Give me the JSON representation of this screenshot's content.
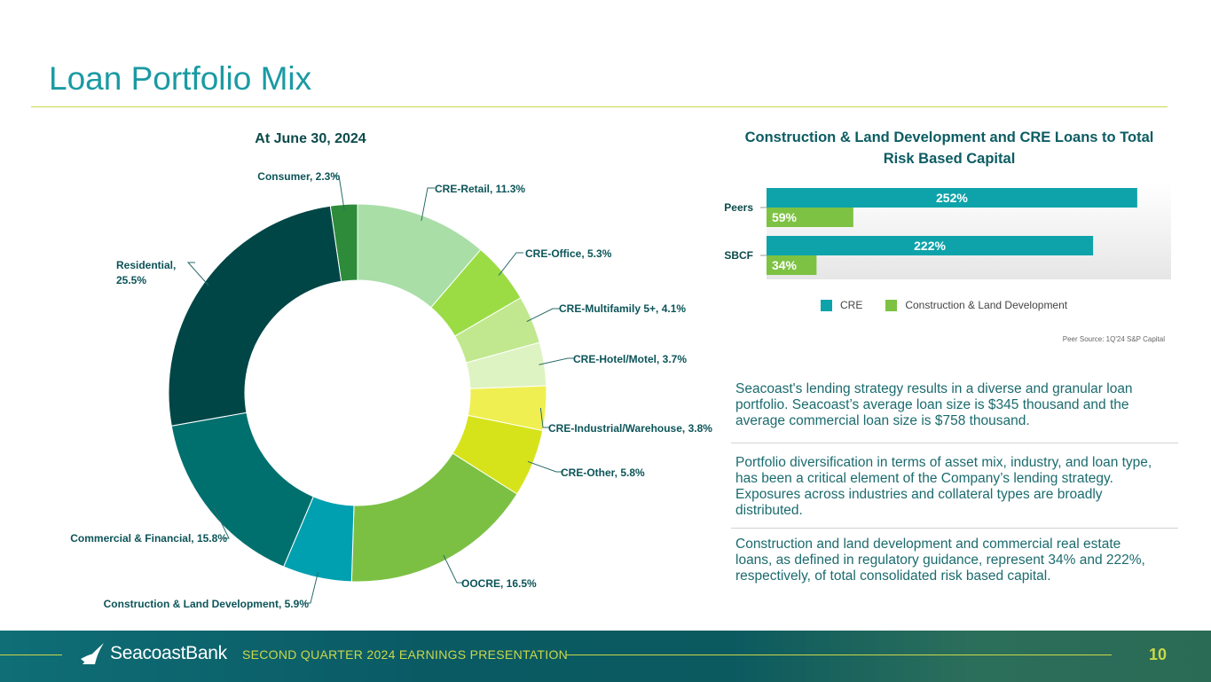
{
  "page": {
    "title": "Loan Portfolio Mix",
    "footer": {
      "brand": "SeacoastBank",
      "presentation": "SECOND QUARTER 2024 EARNINGS PRESENTATION",
      "page_number": "10"
    },
    "source_note": "Peer Source: 1Q'24 S&P Capital",
    "paragraphs": [
      "Seacoast's lending strategy results in a diverse and granular loan portfolio. Seacoast’s average loan size is $345 thousand and the average commercial loan size is $758 thousand.",
      "Portfolio diversification in terms of asset mix, industry, and loan type, has been a critical element of the Company’s lending strategy. Exposures across industries and collateral types are broadly distributed.",
      "Construction and land development and commercial real estate loans, as defined in regulatory guidance, represent 34% and 222%, respectively, of total consolidated risk based capital."
    ]
  },
  "chart_data": [
    {
      "type": "pie",
      "title": "At June 30, 2024",
      "categories": [
        "CRE-Retail",
        "CRE-Office",
        "CRE-Multifamily 5+",
        "CRE-Hotel/Motel",
        "CRE-Industrial/Warehouse",
        "CRE-Other",
        "OOCRE",
        "Construction & Land Development",
        "Commercial & Financial",
        "Residential",
        "Consumer"
      ],
      "values": [
        11.3,
        5.3,
        4.1,
        3.7,
        3.8,
        5.8,
        16.5,
        5.9,
        15.8,
        25.5,
        2.3
      ],
      "labels": [
        "CRE-Retail, 11.3%",
        "CRE-Office, 5.3%",
        "CRE-Multifamily 5+, 4.1%",
        "CRE-Hotel/Motel, 3.7%",
        "CRE-Industrial/Warehouse, 3.8%",
        "CRE-Other, 5.8%",
        "OOCRE, 16.5%",
        "Construction & Land Development, 5.9%",
        "Commercial & Financial, 15.8%",
        "Residential, 25.5%",
        "Consumer, 2.3%"
      ],
      "colors": [
        "#a9dea7",
        "#9bdc45",
        "#c1e88e",
        "#ddf3c2",
        "#efef52",
        "#d6e31a",
        "#7bc043",
        "#00a0b0",
        "#00706e",
        "#004646",
        "#2e8b3a"
      ]
    },
    {
      "type": "bar",
      "orientation": "horizontal",
      "title": "Construction & Land Development and CRE Loans to Total Risk Based Capital",
      "categories": [
        "Peers",
        "SBCF"
      ],
      "series": [
        {
          "name": "CRE",
          "values": [
            252,
            222
          ],
          "labels": [
            "252%",
            "222%"
          ],
          "color": "#0ea3aa"
        },
        {
          "name": "Construction & Land Development",
          "values": [
            59,
            34
          ],
          "labels": [
            "59%",
            "34%"
          ],
          "color": "#7dc242"
        }
      ],
      "xlim": [
        0,
        275
      ]
    }
  ]
}
